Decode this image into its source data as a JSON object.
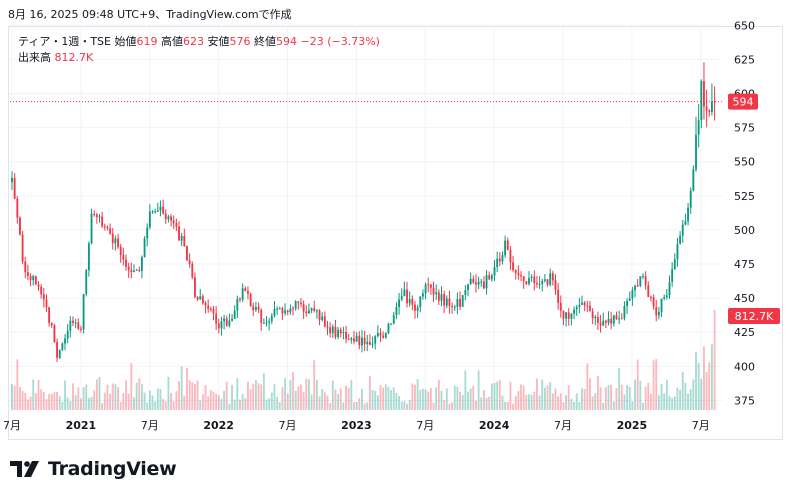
{
  "header": {
    "timestamp": "8月 16, 2025 09:48 UTC+9、TradingView.comで作成"
  },
  "legend": {
    "symbol": "ティア・1週・TSE",
    "open_label": "始値",
    "open": "619",
    "high_label": "高値",
    "high": "623",
    "low_label": "安値",
    "low": "576",
    "close_label": "終値",
    "close": "594",
    "change": "−23 (−3.73%)",
    "volume_label": "出来高",
    "volume": "812.7K"
  },
  "price_badge": "594",
  "volume_badge": "812.7K",
  "brand": "TradingView",
  "colors": {
    "up": "#089981",
    "down": "#f23645",
    "grid": "#f0f3fa",
    "text": "#131722"
  },
  "chart_data": {
    "type": "candlestick",
    "interval": "1週",
    "ylim": [
      368,
      648
    ],
    "y_ticks": [
      375,
      400,
      425,
      450,
      475,
      500,
      525,
      550,
      575,
      600,
      625,
      650
    ],
    "x_ticks": [
      "7月",
      "2021",
      "7月",
      "2022",
      "7月",
      "2023",
      "7月",
      "2024",
      "7月",
      "2025",
      "7月"
    ],
    "last_price": 594,
    "last_volume": "812.7K",
    "grid": true,
    "price_anchors": [
      {
        "t": "2020-07",
        "p": 535
      },
      {
        "t": "2020-08",
        "p": 475
      },
      {
        "t": "2020-10",
        "p": 445
      },
      {
        "t": "2020-11",
        "p": 405
      },
      {
        "t": "2020-12",
        "p": 430
      },
      {
        "t": "2021-01",
        "p": 430
      },
      {
        "t": "2021-02",
        "p": 515
      },
      {
        "t": "2021-04",
        "p": 490
      },
      {
        "t": "2021-05",
        "p": 475
      },
      {
        "t": "2021-06",
        "p": 470
      },
      {
        "t": "2021-07",
        "p": 510
      },
      {
        "t": "2021-08",
        "p": 515
      },
      {
        "t": "2021-10",
        "p": 490
      },
      {
        "t": "2021-11",
        "p": 450
      },
      {
        "t": "2021-12",
        "p": 445
      },
      {
        "t": "2022-01",
        "p": 430
      },
      {
        "t": "2022-02",
        "p": 435
      },
      {
        "t": "2022-03",
        "p": 455
      },
      {
        "t": "2022-04",
        "p": 445
      },
      {
        "t": "2022-05",
        "p": 430
      },
      {
        "t": "2022-06",
        "p": 440
      },
      {
        "t": "2022-08",
        "p": 445
      },
      {
        "t": "2022-10",
        "p": 435
      },
      {
        "t": "2022-11",
        "p": 425
      },
      {
        "t": "2023-01",
        "p": 420
      },
      {
        "t": "2023-02",
        "p": 415
      },
      {
        "t": "2023-04",
        "p": 430
      },
      {
        "t": "2023-05",
        "p": 455
      },
      {
        "t": "2023-06",
        "p": 440
      },
      {
        "t": "2023-07",
        "p": 460
      },
      {
        "t": "2023-08",
        "p": 450
      },
      {
        "t": "2023-10",
        "p": 445
      },
      {
        "t": "2023-11",
        "p": 465
      },
      {
        "t": "2023-12",
        "p": 460
      },
      {
        "t": "2024-01",
        "p": 470
      },
      {
        "t": "2024-02",
        "p": 490
      },
      {
        "t": "2024-03",
        "p": 465
      },
      {
        "t": "2024-05",
        "p": 460
      },
      {
        "t": "2024-06",
        "p": 465
      },
      {
        "t": "2024-07",
        "p": 435
      },
      {
        "t": "2024-09",
        "p": 445
      },
      {
        "t": "2024-10",
        "p": 430
      },
      {
        "t": "2024-12",
        "p": 435
      },
      {
        "t": "2025-01",
        "p": 455
      },
      {
        "t": "2025-02",
        "p": 465
      },
      {
        "t": "2025-03",
        "p": 440
      },
      {
        "t": "2025-04",
        "p": 450
      },
      {
        "t": "2025-05",
        "p": 490
      },
      {
        "t": "2025-06",
        "p": 520
      },
      {
        "t": "2025-07",
        "p": 600
      },
      {
        "t": "2025-08",
        "p": 594
      }
    ]
  }
}
